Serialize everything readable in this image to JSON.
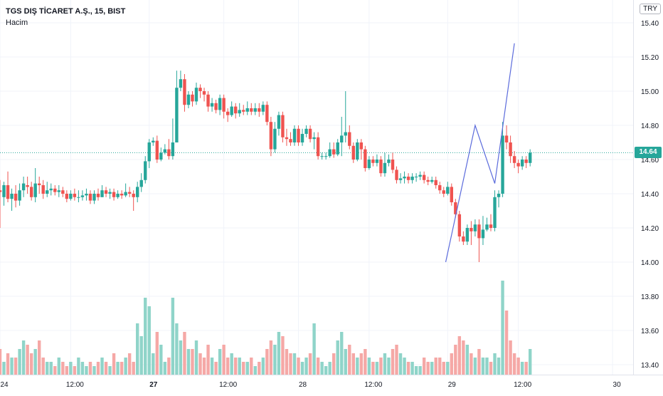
{
  "header": {
    "symbol_title": "TGS DIŞ TİCARET A.Ş., 15, BIST",
    "indicator_label": "Hacim",
    "currency": "TRY"
  },
  "last_price": "14.64",
  "colors": {
    "up": "#26a69a",
    "down": "#ef5350",
    "up_volume": "#8fd4c9",
    "down_volume": "#f5a8a6",
    "grid": "#f0f3fa",
    "drawing": "#5b6bdc",
    "last_line": "#26a69a"
  },
  "chart_data": {
    "type": "candlestick",
    "price_axis": {
      "ticks": [
        {
          "value": 15.4,
          "label": "15.40"
        },
        {
          "value": 15.2,
          "label": "15.20"
        },
        {
          "value": 15.0,
          "label": "15.00"
        },
        {
          "value": 14.8,
          "label": "14.80"
        },
        {
          "value": 14.6,
          "label": "14.60"
        },
        {
          "value": 14.4,
          "label": "14.40"
        },
        {
          "value": 14.2,
          "label": "14.20"
        },
        {
          "value": 14.0,
          "label": "14.00"
        },
        {
          "value": 13.8,
          "label": "13.80"
        },
        {
          "value": 13.6,
          "label": "13.60"
        },
        {
          "value": 13.4,
          "label": "13.40"
        }
      ]
    },
    "time_axis": {
      "labels": [
        {
          "bar": 0,
          "label": "24",
          "bold": false
        },
        {
          "bar": 18,
          "label": "12:00",
          "bold": false
        },
        {
          "bar": 38,
          "label": "27",
          "bold": true
        },
        {
          "bar": 57,
          "label": "12:00",
          "bold": false
        },
        {
          "bar": 76,
          "label": "28",
          "bold": false
        },
        {
          "bar": 94,
          "label": "12:00",
          "bold": false
        },
        {
          "bar": 114,
          "label": "29",
          "bold": false
        },
        {
          "bar": 132,
          "label": "12:00",
          "bold": false
        },
        {
          "bar": 156,
          "label": "30",
          "bold": false
        }
      ]
    },
    "candles": [
      [
        14.42,
        14.41,
        14.48,
        14.2,
        6
      ],
      [
        14.38,
        14.45,
        14.47,
        14.33,
        3
      ],
      [
        14.45,
        14.37,
        14.53,
        14.35,
        5
      ],
      [
        14.37,
        14.4,
        14.43,
        14.3,
        4
      ],
      [
        14.4,
        14.36,
        14.45,
        14.32,
        4
      ],
      [
        14.36,
        14.42,
        14.46,
        14.33,
        6
      ],
      [
        14.42,
        14.46,
        14.5,
        14.38,
        8
      ],
      [
        14.45,
        14.44,
        14.5,
        14.4,
        7
      ],
      [
        14.44,
        14.38,
        14.47,
        14.36,
        5
      ],
      [
        14.38,
        14.46,
        14.55,
        14.35,
        6
      ],
      [
        14.46,
        14.45,
        14.5,
        14.4,
        8
      ],
      [
        14.45,
        14.4,
        14.48,
        14.37,
        4
      ],
      [
        14.4,
        14.42,
        14.47,
        14.38,
        3
      ],
      [
        14.42,
        14.43,
        14.46,
        14.39,
        3
      ],
      [
        14.43,
        14.41,
        14.45,
        14.39,
        2
      ],
      [
        14.41,
        14.42,
        14.45,
        14.38,
        4
      ],
      [
        14.42,
        14.4,
        14.44,
        14.38,
        3
      ],
      [
        14.4,
        14.37,
        14.42,
        14.35,
        2
      ],
      [
        14.37,
        14.4,
        14.42,
        14.36,
        3
      ],
      [
        14.4,
        14.38,
        14.43,
        14.36,
        2
      ],
      [
        14.38,
        14.38,
        14.42,
        14.35,
        4
      ],
      [
        14.38,
        14.39,
        14.42,
        14.36,
        3
      ],
      [
        14.39,
        14.4,
        14.43,
        14.36,
        2
      ],
      [
        14.4,
        14.36,
        14.42,
        14.34,
        3
      ],
      [
        14.36,
        14.4,
        14.42,
        14.34,
        2
      ],
      [
        14.4,
        14.38,
        14.43,
        14.36,
        3
      ],
      [
        14.38,
        14.42,
        14.45,
        14.38,
        4
      ],
      [
        14.42,
        14.4,
        14.44,
        14.38,
        3
      ],
      [
        14.4,
        14.41,
        14.43,
        14.37,
        2
      ],
      [
        14.41,
        14.38,
        14.43,
        14.36,
        5
      ],
      [
        14.38,
        14.4,
        14.42,
        14.37,
        3
      ],
      [
        14.4,
        14.39,
        14.42,
        14.37,
        3
      ],
      [
        14.39,
        14.41,
        14.46,
        14.38,
        4
      ],
      [
        14.41,
        14.4,
        14.44,
        14.38,
        5
      ],
      [
        14.4,
        14.38,
        14.42,
        14.3,
        3
      ],
      [
        14.38,
        14.44,
        14.47,
        14.35,
        12
      ],
      [
        14.44,
        14.48,
        14.52,
        14.41,
        9
      ],
      [
        14.48,
        14.59,
        14.62,
        14.46,
        18
      ],
      [
        14.59,
        14.7,
        14.72,
        14.55,
        16
      ],
      [
        14.7,
        14.71,
        14.73,
        14.68,
        5
      ],
      [
        14.71,
        14.6,
        14.74,
        14.58,
        10
      ],
      [
        14.6,
        14.64,
        14.67,
        14.59,
        7
      ],
      [
        14.64,
        14.66,
        14.69,
        14.63,
        3
      ],
      [
        14.66,
        14.62,
        14.72,
        14.6,
        4
      ],
      [
        14.62,
        14.7,
        14.84,
        14.6,
        18
      ],
      [
        14.7,
        15.02,
        15.12,
        14.82,
        12
      ],
      [
        15.02,
        15.07,
        15.12,
        15.0,
        8
      ],
      [
        15.07,
        14.92,
        15.1,
        14.88,
        10
      ],
      [
        14.92,
        14.98,
        15.0,
        14.9,
        6
      ],
      [
        14.98,
        14.94,
        15.0,
        14.91,
        6
      ],
      [
        14.94,
        15.02,
        15.05,
        14.92,
        8
      ],
      [
        15.02,
        15.0,
        15.04,
        14.96,
        5
      ],
      [
        15.0,
        14.98,
        15.02,
        14.94,
        4
      ],
      [
        14.98,
        14.91,
        15.0,
        14.88,
        7
      ],
      [
        14.91,
        14.93,
        14.96,
        14.88,
        4
      ],
      [
        14.93,
        14.89,
        14.95,
        14.87,
        3
      ],
      [
        14.89,
        14.96,
        14.98,
        14.86,
        6
      ],
      [
        14.96,
        14.88,
        14.98,
        14.84,
        7
      ],
      [
        14.88,
        14.86,
        14.9,
        14.82,
        4
      ],
      [
        14.86,
        14.91,
        14.94,
        14.85,
        5
      ],
      [
        14.91,
        14.87,
        14.93,
        14.84,
        4
      ],
      [
        14.87,
        14.89,
        14.93,
        14.85,
        4
      ],
      [
        14.89,
        14.88,
        14.92,
        14.86,
        3
      ],
      [
        14.88,
        14.9,
        14.94,
        14.86,
        3
      ],
      [
        14.9,
        14.88,
        14.93,
        14.86,
        4
      ],
      [
        14.88,
        14.9,
        14.93,
        14.86,
        2
      ],
      [
        14.9,
        14.88,
        14.93,
        14.85,
        3
      ],
      [
        14.88,
        14.92,
        14.94,
        14.86,
        4
      ],
      [
        14.92,
        14.82,
        14.94,
        14.8,
        6
      ],
      [
        14.82,
        14.66,
        14.85,
        14.62,
        8
      ],
      [
        14.66,
        14.78,
        14.82,
        14.64,
        7
      ],
      [
        14.78,
        14.86,
        14.88,
        14.74,
        10
      ],
      [
        14.86,
        14.73,
        14.88,
        14.7,
        9
      ],
      [
        14.73,
        14.72,
        14.78,
        14.68,
        6
      ],
      [
        14.72,
        14.7,
        14.76,
        14.68,
        5
      ],
      [
        14.7,
        14.78,
        14.8,
        14.68,
        5
      ],
      [
        14.78,
        14.7,
        14.8,
        14.68,
        4
      ],
      [
        14.7,
        14.75,
        14.78,
        14.68,
        3
      ],
      [
        14.75,
        14.78,
        14.8,
        14.73,
        4
      ],
      [
        14.78,
        14.72,
        14.8,
        14.7,
        5
      ],
      [
        14.72,
        14.73,
        14.76,
        14.66,
        12
      ],
      [
        14.73,
        14.62,
        14.76,
        14.6,
        4
      ],
      [
        14.62,
        14.62,
        14.64,
        14.6,
        3
      ],
      [
        14.62,
        14.62,
        14.64,
        14.6,
        2
      ],
      [
        14.62,
        14.66,
        14.7,
        14.61,
        3
      ],
      [
        14.66,
        14.63,
        14.7,
        14.61,
        5
      ],
      [
        14.63,
        14.7,
        14.72,
        14.62,
        8
      ],
      [
        14.7,
        14.74,
        14.85,
        14.62,
        10
      ],
      [
        14.74,
        14.76,
        15.0,
        14.7,
        6
      ],
      [
        14.76,
        14.68,
        14.8,
        14.66,
        7
      ],
      [
        14.68,
        14.6,
        14.7,
        14.58,
        5
      ],
      [
        14.6,
        14.7,
        14.72,
        14.59,
        4
      ],
      [
        14.7,
        14.66,
        14.72,
        14.6,
        5
      ],
      [
        14.66,
        14.55,
        14.68,
        14.53,
        6
      ],
      [
        14.55,
        14.6,
        14.62,
        14.54,
        4
      ],
      [
        14.6,
        14.58,
        14.62,
        14.56,
        3
      ],
      [
        14.58,
        14.6,
        14.63,
        14.56,
        3
      ],
      [
        14.6,
        14.52,
        14.62,
        14.5,
        4
      ],
      [
        14.52,
        14.58,
        14.64,
        14.5,
        5
      ],
      [
        14.58,
        14.6,
        14.63,
        14.56,
        4
      ],
      [
        14.6,
        14.54,
        14.64,
        14.52,
        6
      ],
      [
        14.54,
        14.48,
        14.56,
        14.46,
        7
      ],
      [
        14.48,
        14.49,
        14.52,
        14.46,
        5
      ],
      [
        14.49,
        14.5,
        14.53,
        14.46,
        4
      ],
      [
        14.5,
        14.48,
        14.52,
        14.46,
        3
      ],
      [
        14.48,
        14.5,
        14.52,
        14.46,
        3
      ],
      [
        14.5,
        14.5,
        14.52,
        14.47,
        2
      ],
      [
        14.5,
        14.51,
        14.53,
        14.48,
        2
      ],
      [
        14.51,
        14.48,
        14.53,
        14.46,
        4
      ],
      [
        14.48,
        14.47,
        14.5,
        14.45,
        3
      ],
      [
        14.47,
        14.48,
        14.5,
        14.46,
        3
      ],
      [
        14.48,
        14.45,
        14.5,
        14.43,
        4
      ],
      [
        14.45,
        14.42,
        14.47,
        14.4,
        4
      ],
      [
        14.42,
        14.4,
        14.44,
        14.38,
        3
      ],
      [
        14.4,
        14.44,
        14.47,
        14.39,
        3
      ],
      [
        14.44,
        14.35,
        14.46,
        14.33,
        5
      ],
      [
        14.35,
        14.28,
        14.37,
        14.26,
        7
      ],
      [
        14.28,
        14.15,
        14.3,
        14.12,
        9
      ],
      [
        14.15,
        14.12,
        14.18,
        14.1,
        8
      ],
      [
        14.12,
        14.2,
        14.22,
        14.1,
        7
      ],
      [
        14.2,
        14.18,
        14.24,
        14.1,
        5
      ],
      [
        14.18,
        14.22,
        14.25,
        14.15,
        4
      ],
      [
        14.22,
        14.14,
        14.25,
        14.0,
        6
      ],
      [
        14.14,
        14.19,
        14.27,
        14.1,
        4
      ],
      [
        14.19,
        14.22,
        14.26,
        14.18,
        4
      ],
      [
        14.22,
        14.2,
        14.28,
        14.18,
        3
      ],
      [
        14.2,
        14.38,
        14.42,
        14.18,
        5
      ],
      [
        14.38,
        14.4,
        14.42,
        14.32,
        4
      ],
      [
        14.4,
        14.74,
        14.82,
        14.38,
        22
      ],
      [
        14.74,
        14.7,
        14.8,
        14.66,
        15
      ],
      [
        14.7,
        14.62,
        14.74,
        14.58,
        8
      ],
      [
        14.62,
        14.58,
        14.65,
        14.55,
        5
      ],
      [
        14.58,
        14.56,
        14.6,
        14.52,
        4
      ],
      [
        14.56,
        14.6,
        14.62,
        14.54,
        3
      ],
      [
        14.6,
        14.58,
        14.62,
        14.55,
        3
      ],
      [
        14.58,
        14.64,
        14.66,
        14.56,
        6
      ]
    ],
    "lines": [
      {
        "name": "trend-line",
        "points": [
          [
            113.5,
            14.0
          ],
          [
            121,
            14.8
          ],
          [
            126,
            14.46
          ],
          [
            131,
            15.28
          ]
        ]
      }
    ],
    "last_price": 14.64
  }
}
